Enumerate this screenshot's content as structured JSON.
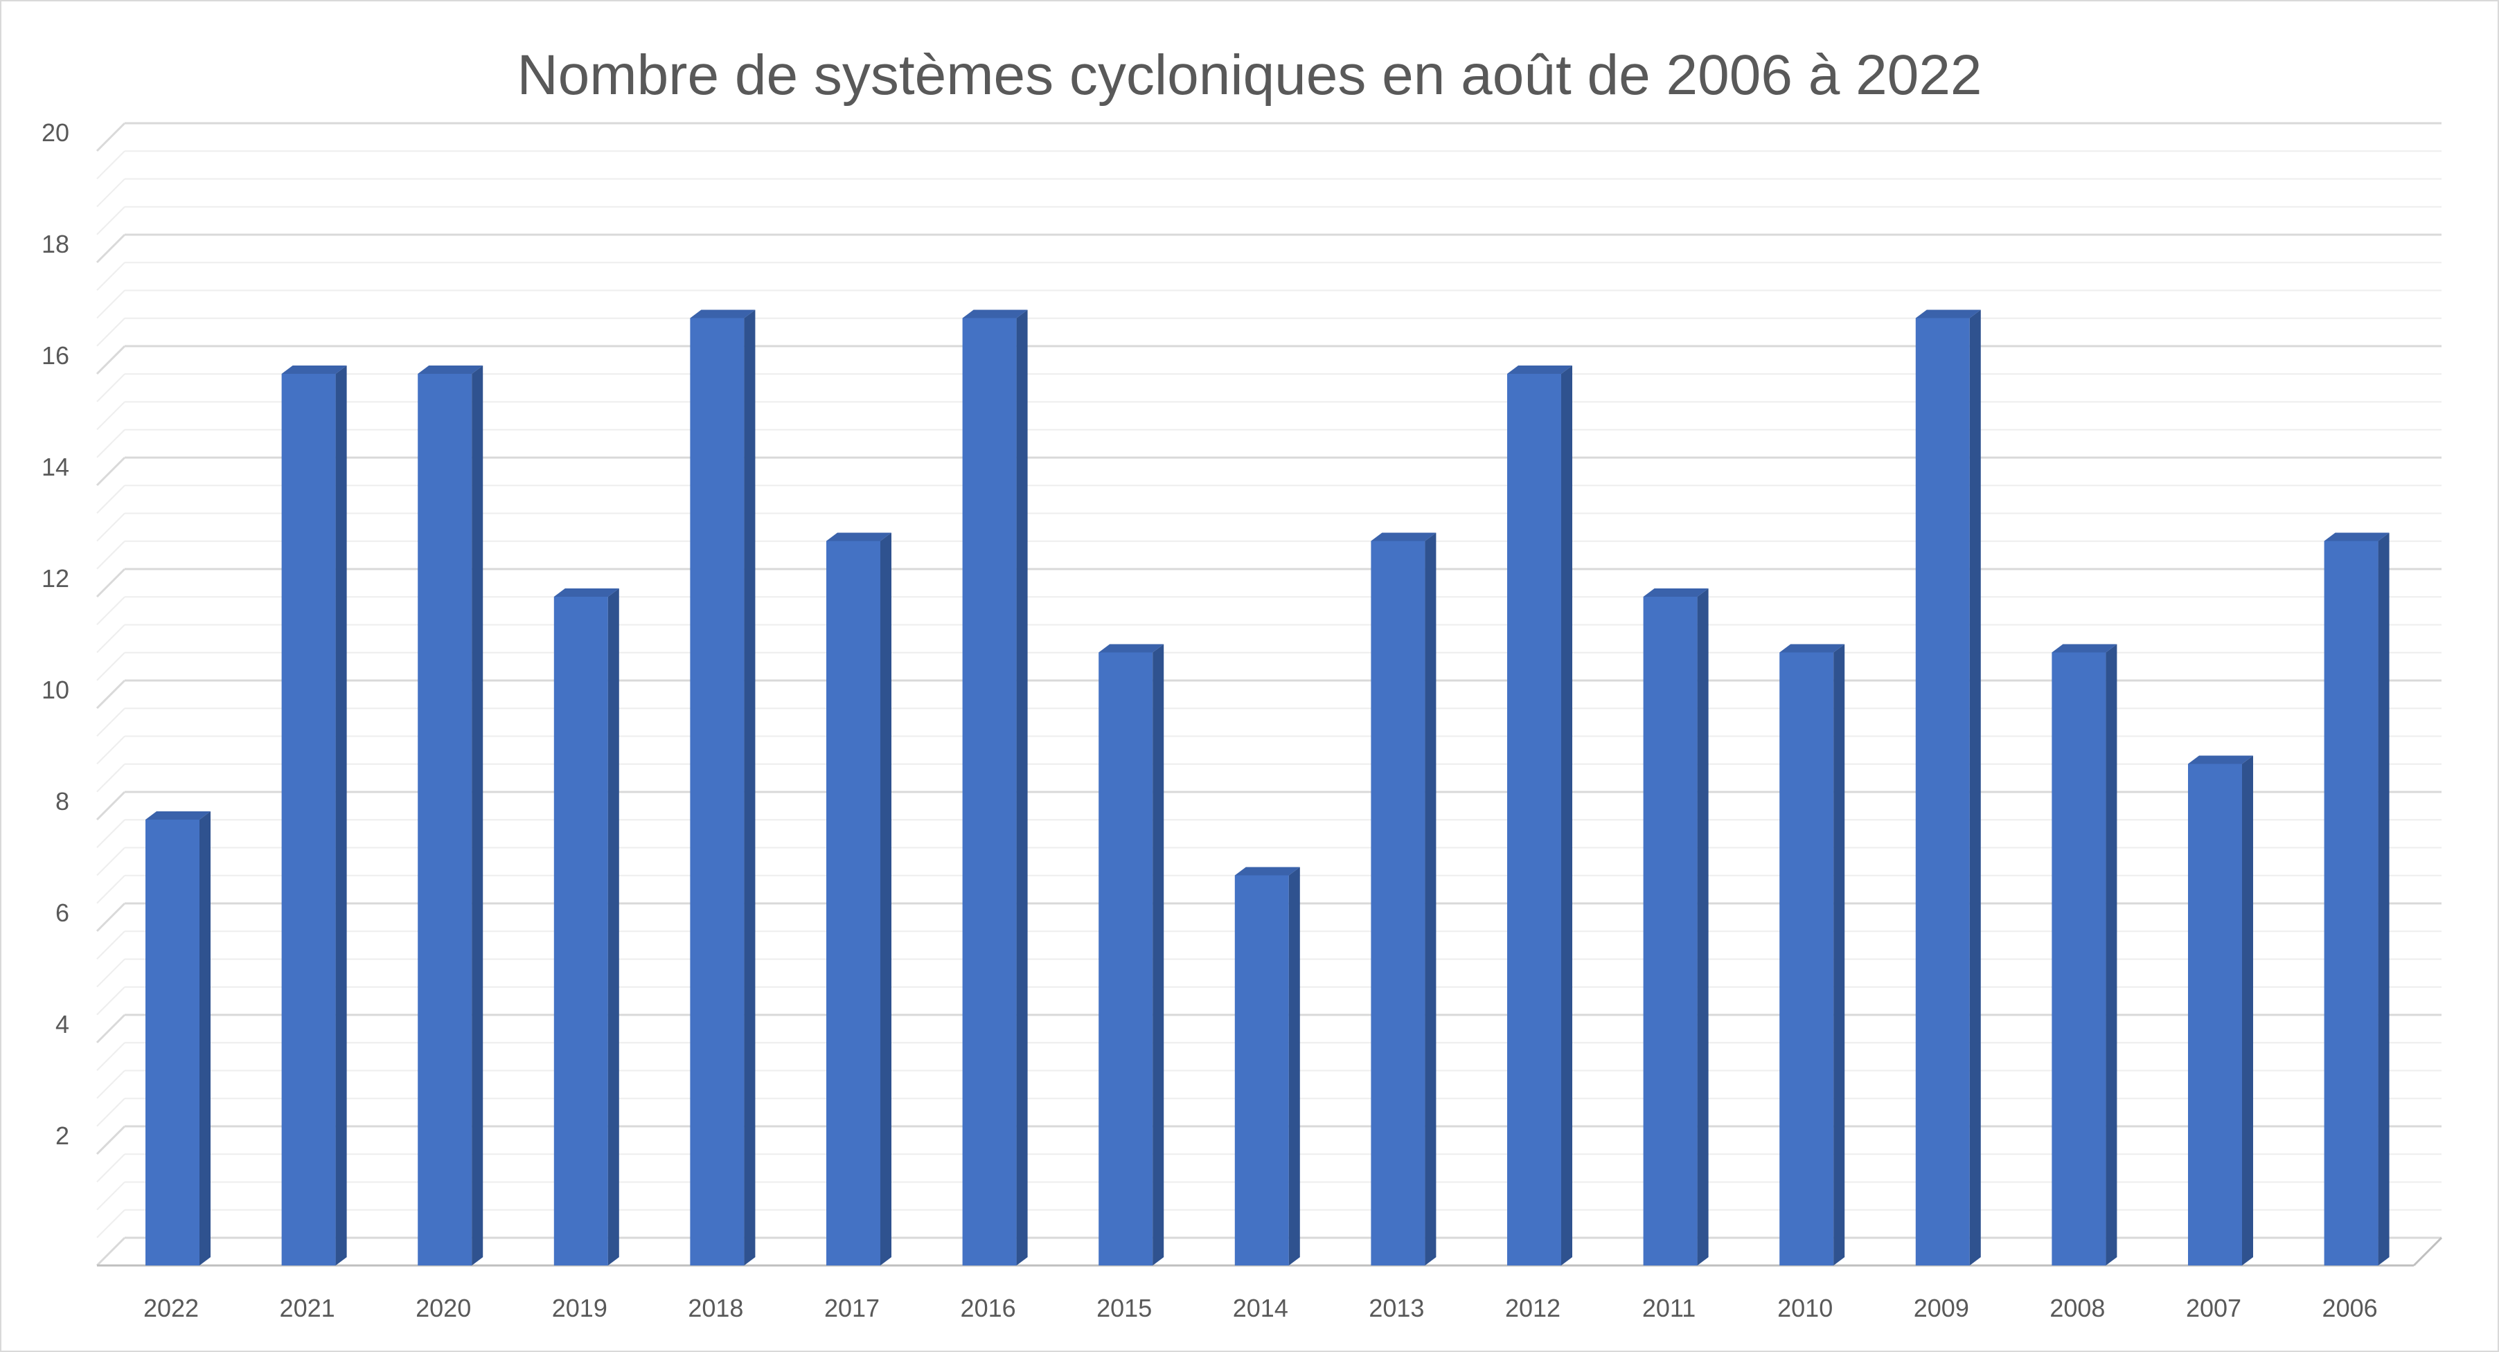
{
  "chart_data": {
    "type": "bar",
    "title": "Nombre de systèmes cycloniques en août de 2006 à 2022",
    "xlabel": "",
    "ylabel": "",
    "categories": [
      "2022",
      "2021",
      "2020",
      "2019",
      "2018",
      "2017",
      "2016",
      "2015",
      "2014",
      "2013",
      "2012",
      "2011",
      "2010",
      "2009",
      "2008",
      "2007",
      "2006"
    ],
    "values": [
      8,
      16,
      16,
      12,
      17,
      13,
      17,
      11,
      7,
      13,
      16,
      12,
      11,
      17,
      11,
      9,
      13
    ],
    "ylim": [
      0,
      20
    ],
    "yticks": [
      "2",
      "4",
      "6",
      "8",
      "10",
      "12",
      "14",
      "16",
      "18",
      "20"
    ],
    "grid": true,
    "style": "3d-column",
    "colors": {
      "bar_front": "#4472c4",
      "bar_side": "#2f528f",
      "bar_top": "#3a62ab",
      "gridline": "#d9d9d9",
      "minor_gridline": "#eeeeee",
      "text": "#595959"
    }
  }
}
